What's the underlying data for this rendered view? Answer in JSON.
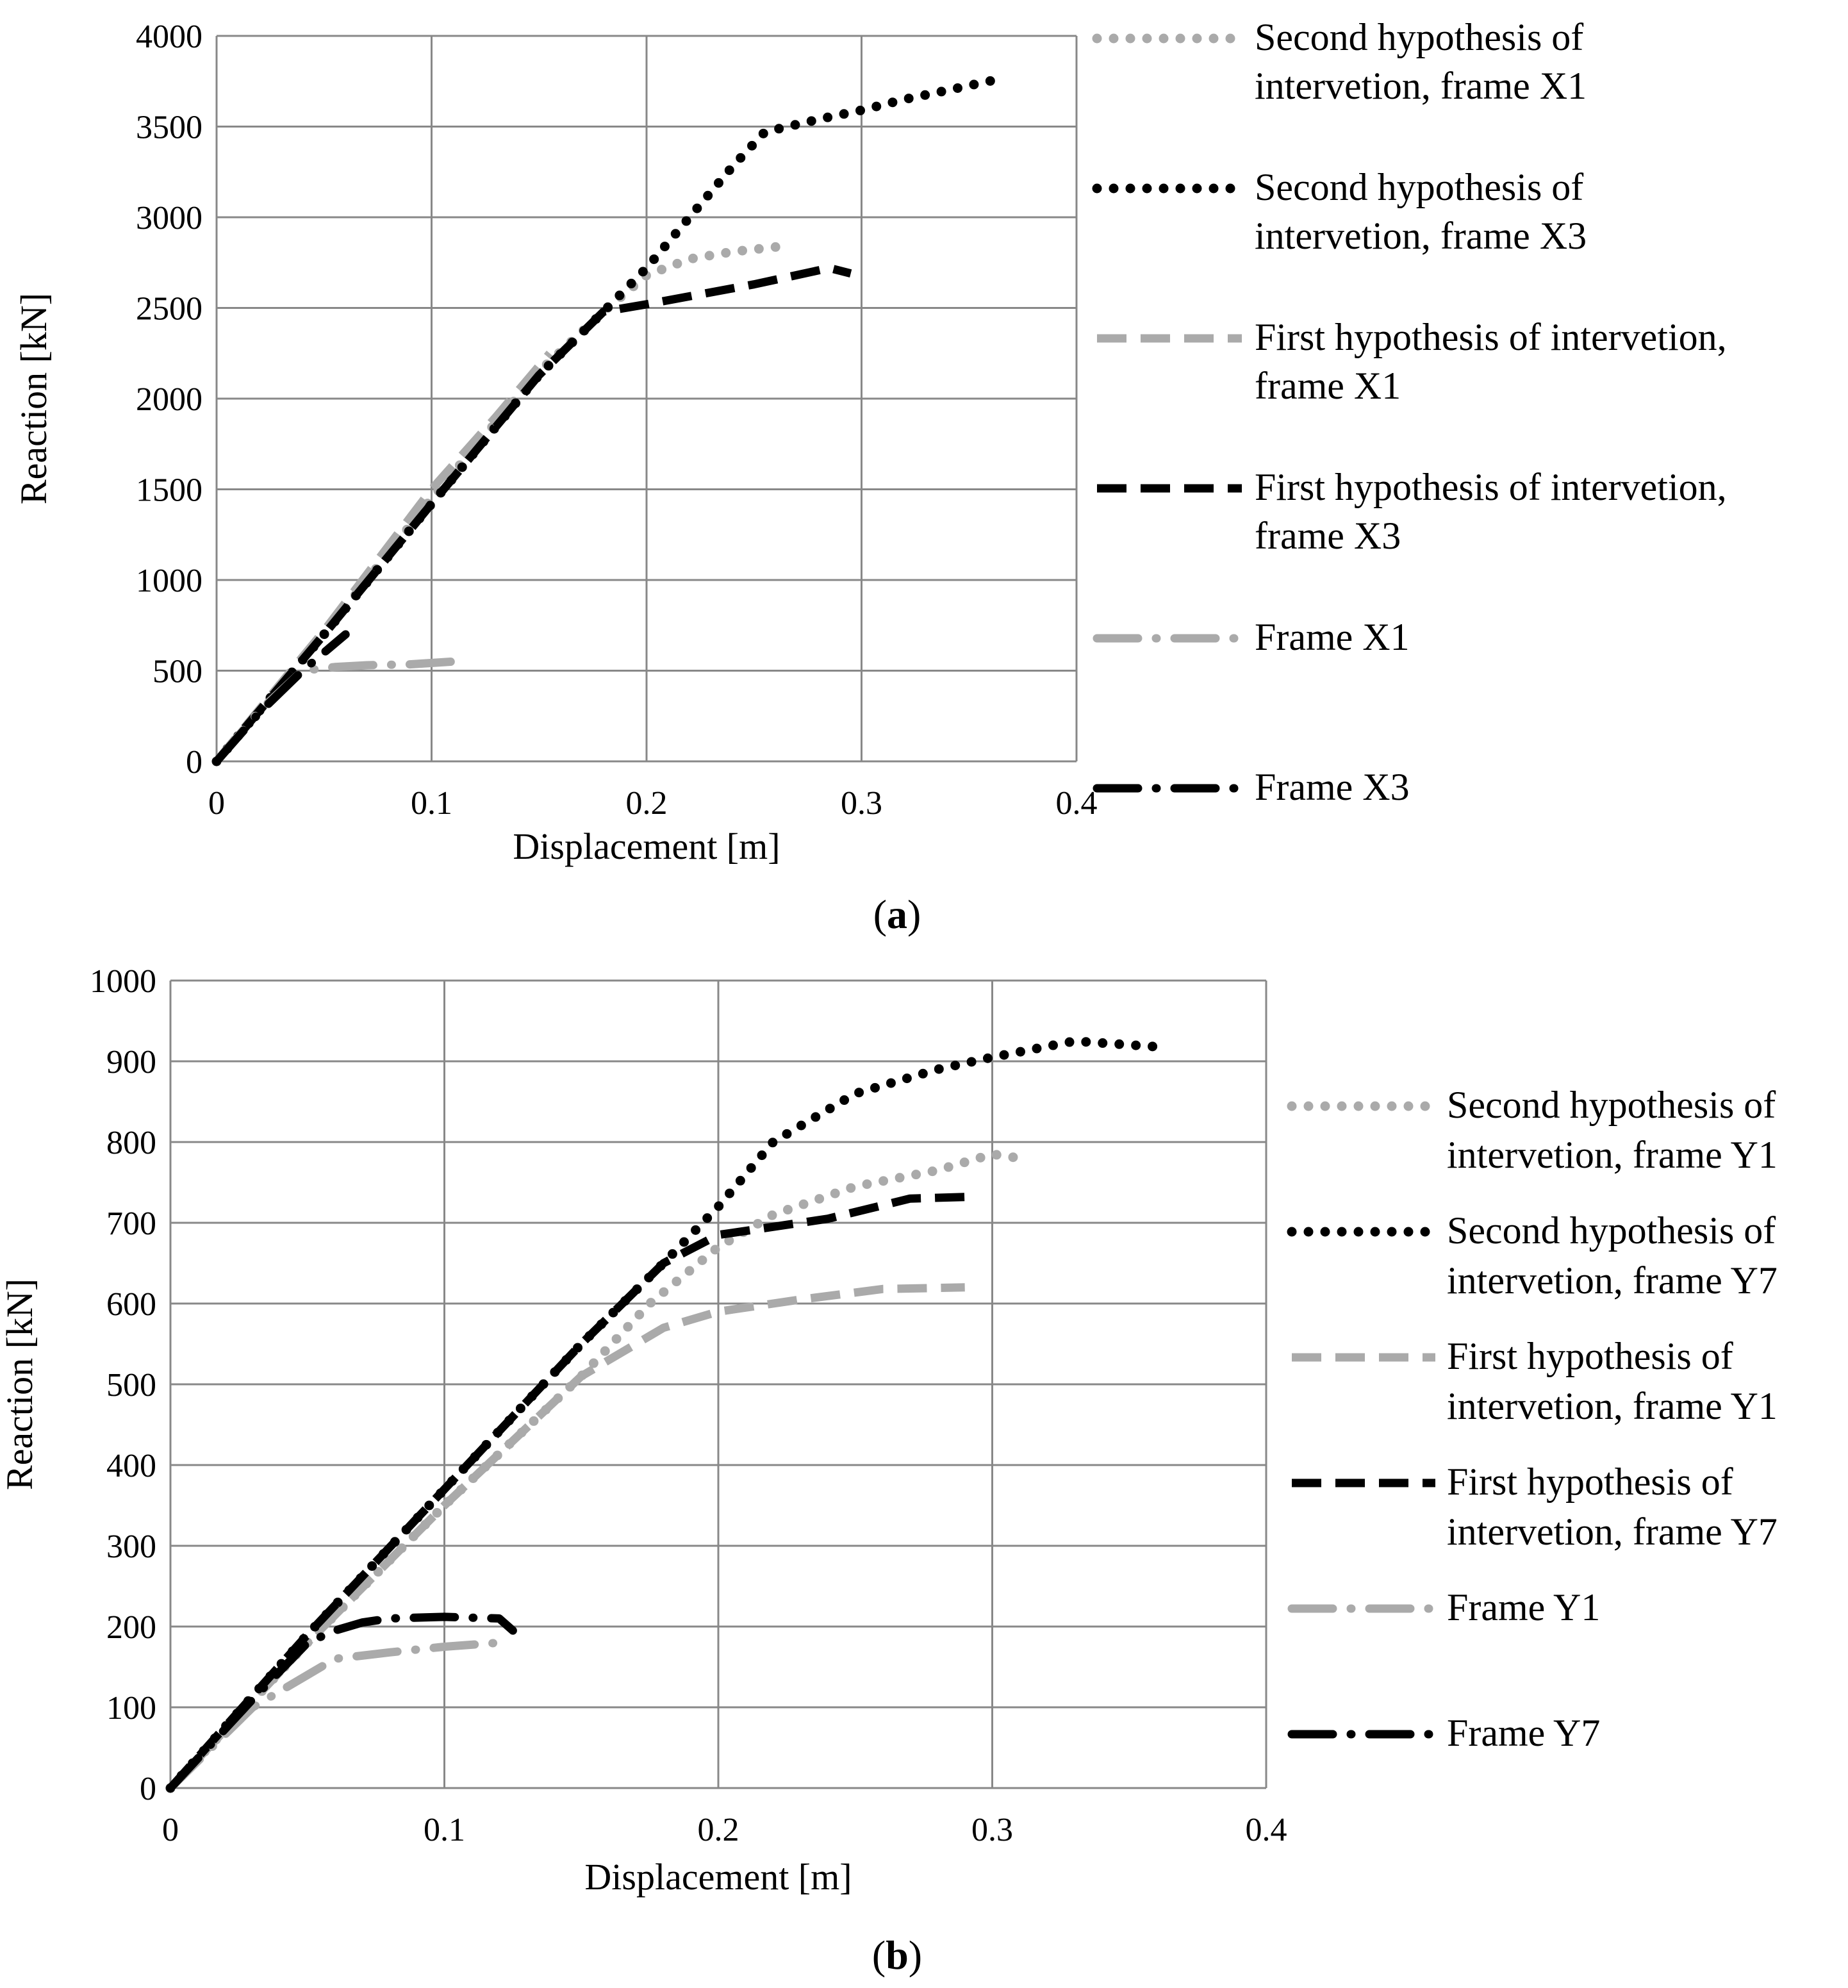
{
  "colors": {
    "black": "#000000",
    "grey": "#aaaaaa",
    "grid": "#888888"
  },
  "chart_data": [
    {
      "type": "line",
      "caption": {
        "open": "(",
        "letter": "a",
        "close": ")"
      },
      "xlabel": "Displacement [m]",
      "ylabel": "Reaction [kN]",
      "xlim": [
        0,
        0.4
      ],
      "ylim": [
        0,
        4000
      ],
      "xticks": [
        0,
        0.1,
        0.2,
        0.3,
        0.4
      ],
      "yticks": [
        0,
        500,
        1000,
        1500,
        2000,
        2500,
        3000,
        3500,
        4000
      ],
      "xtick_labels": [
        "0",
        "0.1",
        "0.2",
        "0.3",
        "0.4"
      ],
      "ytick_labels": [
        "0",
        "500",
        "1000",
        "1500",
        "2000",
        "2500",
        "3000",
        "3500",
        "4000"
      ],
      "grid": true,
      "legend_position": "right",
      "series": [
        {
          "name": "Second hypothesis of intervetion, frame X1",
          "legend_lines": [
            "Second hypothesis of",
            "intervetion, frame X1"
          ],
          "style": "dot",
          "color": "#aaaaaa",
          "x": [
            0,
            0.05,
            0.1,
            0.15,
            0.18,
            0.2,
            0.22,
            0.24,
            0.263
          ],
          "y": [
            0,
            700,
            1450,
            2150,
            2480,
            2680,
            2770,
            2810,
            2840
          ]
        },
        {
          "name": "Second hypothesis of intervetion, frame X3",
          "legend_lines": [
            "Second hypothesis of",
            "intervetion, frame X3"
          ],
          "style": "dot",
          "color": "#000000",
          "x": [
            0,
            0.05,
            0.1,
            0.15,
            0.18,
            0.2,
            0.22,
            0.24,
            0.255,
            0.28,
            0.3,
            0.32,
            0.34,
            0.367
          ],
          "y": [
            0,
            700,
            1420,
            2130,
            2480,
            2720,
            3000,
            3280,
            3470,
            3540,
            3590,
            3650,
            3700,
            3770
          ]
        },
        {
          "name": "First hypothesis of intervetion, frame X1",
          "legend_lines": [
            "First hypothesis of intervetion,",
            "frame X1"
          ],
          "style": "dash",
          "color": "#aaaaaa",
          "x": [
            0,
            0.05,
            0.1,
            0.13,
            0.155
          ],
          "y": [
            0,
            720,
            1500,
            1900,
            2250
          ]
        },
        {
          "name": "First hypothesis of intervetion, frame X3",
          "legend_lines": [
            "First hypothesis of intervetion,",
            "frame X3"
          ],
          "style": "dash",
          "color": "#000000",
          "x": [
            0,
            0.05,
            0.1,
            0.15,
            0.18,
            0.2,
            0.25,
            0.285,
            0.295
          ],
          "y": [
            0,
            700,
            1420,
            2130,
            2480,
            2520,
            2630,
            2720,
            2690
          ]
        },
        {
          "name": "Frame X1",
          "legend_lines": [
            "Frame X1"
          ],
          "style": "dashdot",
          "color": "#aaaaaa",
          "x": [
            0,
            0.02,
            0.04,
            0.055,
            0.07,
            0.09,
            0.11
          ],
          "y": [
            0,
            280,
            500,
            520,
            530,
            535,
            550
          ]
        },
        {
          "name": "Frame X3",
          "legend_lines": [
            "Frame X3"
          ],
          "style": "dashdot",
          "color": "#000000",
          "x": [
            0,
            0.02,
            0.04,
            0.06
          ],
          "y": [
            0,
            270,
            500,
            700
          ]
        }
      ]
    },
    {
      "type": "line",
      "caption": {
        "open": "(",
        "letter": "b",
        "close": ")"
      },
      "xlabel": "Displacement [m]",
      "ylabel": "Reaction [kN]",
      "xlim": [
        0,
        0.4
      ],
      "ylim": [
        0,
        1000
      ],
      "xticks": [
        0,
        0.1,
        0.2,
        0.3,
        0.4
      ],
      "yticks": [
        0,
        100,
        200,
        300,
        400,
        500,
        600,
        700,
        800,
        900,
        1000
      ],
      "xtick_labels": [
        "0",
        "0.1",
        "0.2",
        "0.3",
        "0.4"
      ],
      "ytick_labels": [
        "0",
        "100",
        "200",
        "300",
        "400",
        "500",
        "600",
        "700",
        "800",
        "900",
        "1000"
      ],
      "grid": true,
      "legend_position": "right",
      "series": [
        {
          "name": "Second hypothesis of intervetion, frame Y1",
          "legend_lines": [
            "Second hypothesis of",
            "intervetion, frame Y1"
          ],
          "style": "dot",
          "color": "#aaaaaa",
          "x": [
            0,
            0.05,
            0.1,
            0.15,
            0.175,
            0.2,
            0.22,
            0.25,
            0.28,
            0.3,
            0.31
          ],
          "y": [
            0,
            180,
            350,
            510,
            600,
            670,
            710,
            745,
            765,
            785,
            780
          ]
        },
        {
          "name": "Second hypothesis of intervetion, frame Y7",
          "legend_lines": [
            "Second hypothesis of",
            "intervetion, frame Y7"
          ],
          "style": "dot",
          "color": "#000000",
          "x": [
            0,
            0.05,
            0.1,
            0.15,
            0.18,
            0.2,
            0.22,
            0.25,
            0.28,
            0.3,
            0.33,
            0.36
          ],
          "y": [
            0,
            190,
            370,
            550,
            650,
            720,
            800,
            860,
            890,
            905,
            925,
            918
          ]
        },
        {
          "name": "First hypothesis of intervetion, frame Y1",
          "legend_lines": [
            "First hypothesis of",
            "intervetion, frame Y1"
          ],
          "style": "dash",
          "color": "#aaaaaa",
          "x": [
            0,
            0.05,
            0.1,
            0.15,
            0.18,
            0.2,
            0.23,
            0.26,
            0.29
          ],
          "y": [
            0,
            180,
            350,
            510,
            570,
            590,
            605,
            618,
            620
          ]
        },
        {
          "name": "First hypothesis of intervetion, frame Y7",
          "legend_lines": [
            "First hypothesis of",
            "intervetion, frame Y7"
          ],
          "style": "dash",
          "color": "#000000",
          "x": [
            0,
            0.05,
            0.1,
            0.15,
            0.18,
            0.2,
            0.24,
            0.27,
            0.29
          ],
          "y": [
            0,
            190,
            370,
            550,
            650,
            685,
            705,
            730,
            732
          ]
        },
        {
          "name": "Frame Y1",
          "legend_lines": [
            "Frame Y1"
          ],
          "style": "dashdot",
          "color": "#aaaaaa",
          "x": [
            0,
            0.03,
            0.05,
            0.06,
            0.08,
            0.1,
            0.12
          ],
          "y": [
            0,
            100,
            140,
            160,
            168,
            175,
            180
          ]
        },
        {
          "name": "Frame Y7",
          "legend_lines": [
            "Frame Y7"
          ],
          "style": "dashdot",
          "color": "#000000",
          "x": [
            0,
            0.03,
            0.05,
            0.06,
            0.07,
            0.08,
            0.1,
            0.12,
            0.125
          ],
          "y": [
            0,
            110,
            180,
            195,
            205,
            210,
            212,
            210,
            195
          ]
        }
      ]
    }
  ]
}
